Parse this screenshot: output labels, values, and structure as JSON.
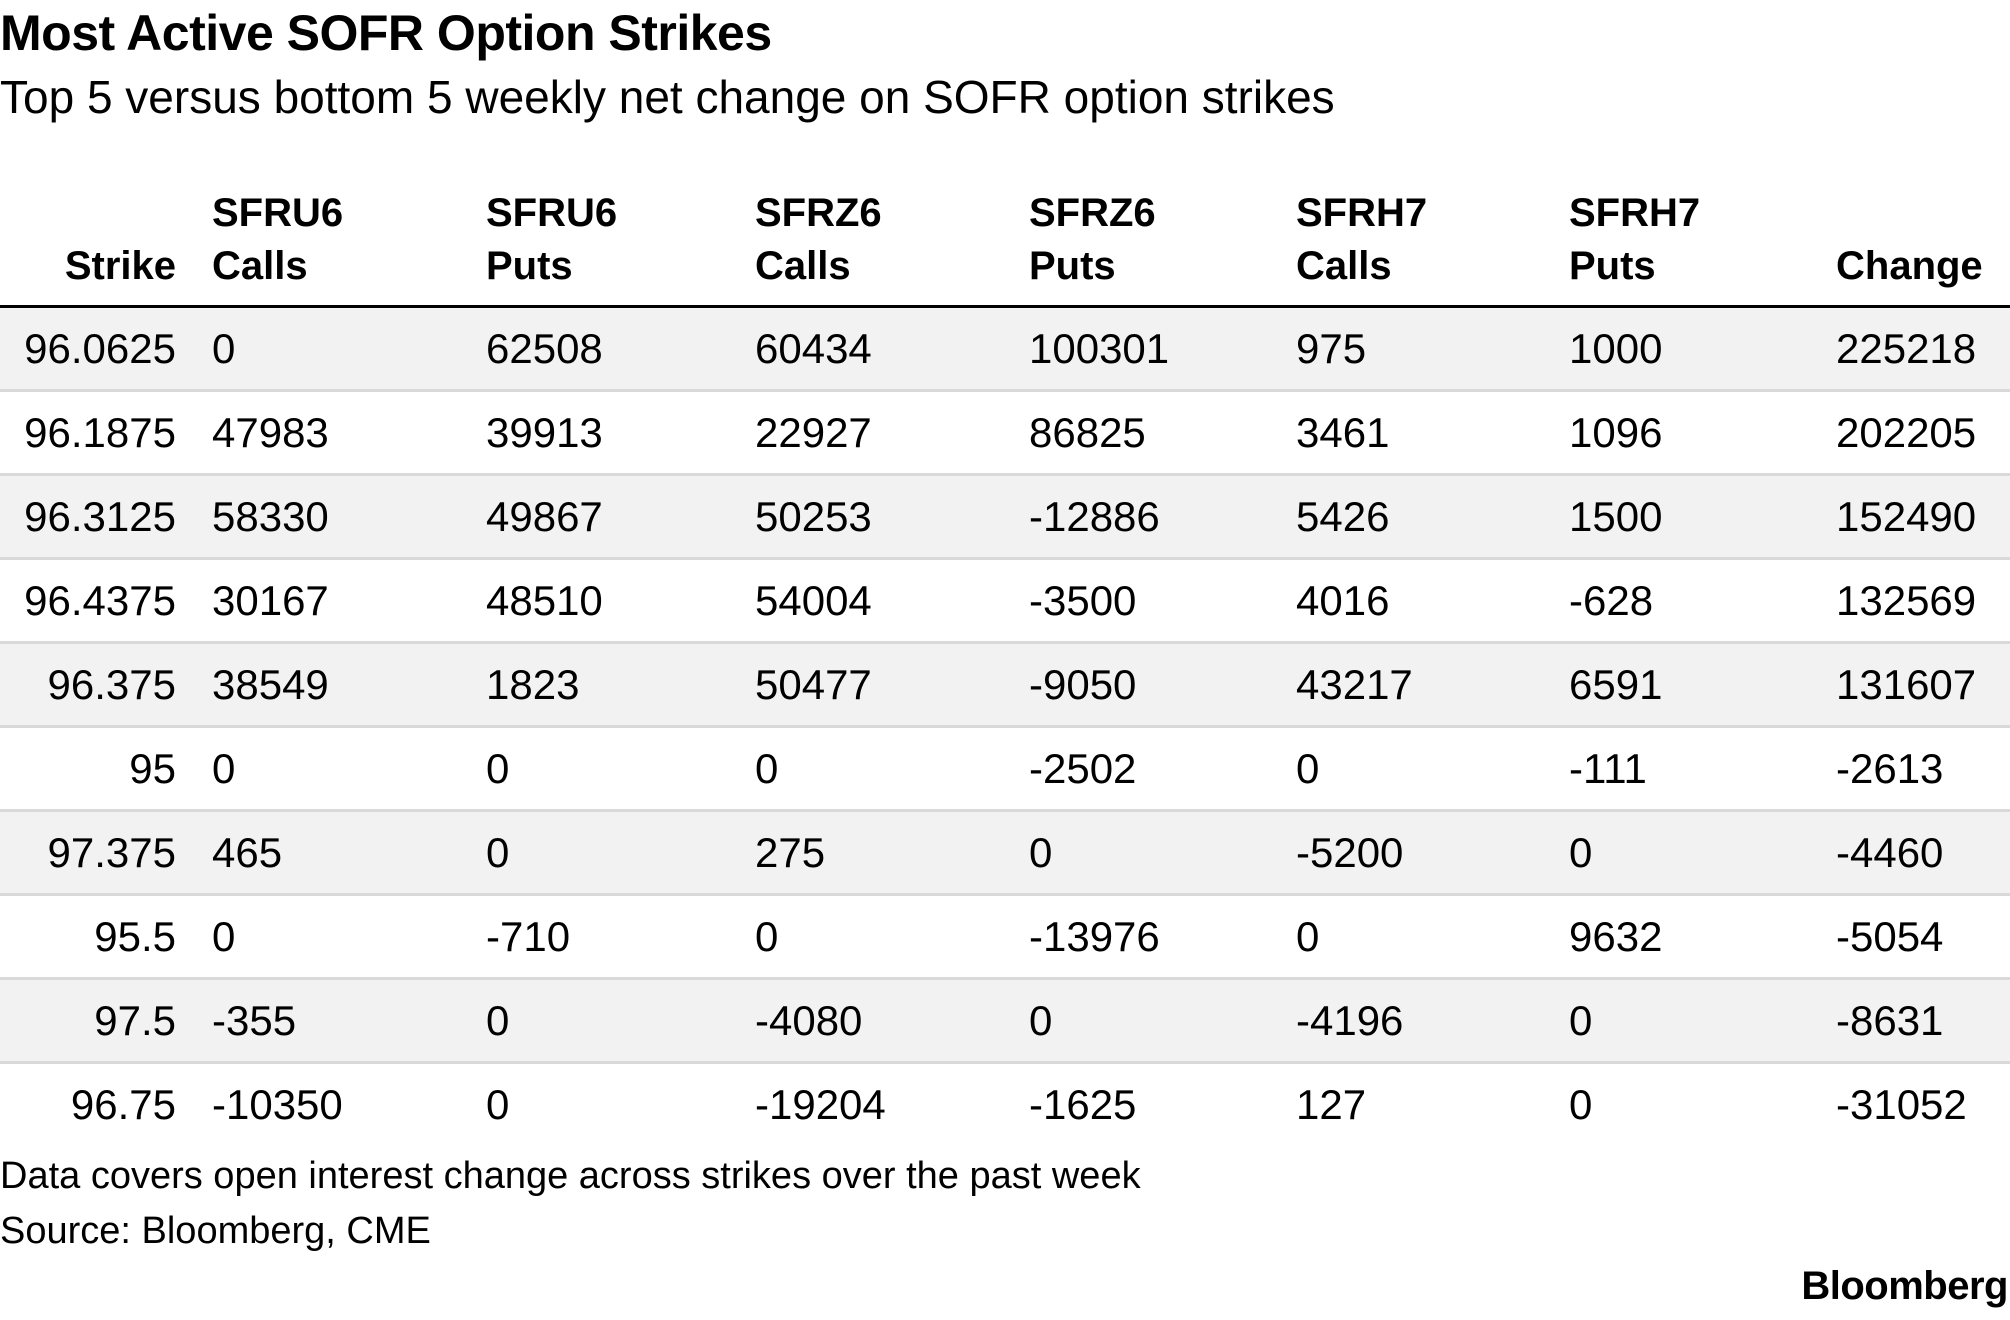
{
  "header": {
    "title": "Most Active SOFR Option Strikes",
    "subtitle": "Top 5 versus bottom 5 weekly net change on SOFR option strikes"
  },
  "table": {
    "columns": [
      {
        "line1": "",
        "line2": "Strike"
      },
      {
        "line1": "SFRU6",
        "line2": "Calls"
      },
      {
        "line1": "SFRU6",
        "line2": "Puts"
      },
      {
        "line1": "SFRZ6",
        "line2": "Calls"
      },
      {
        "line1": "SFRZ6",
        "line2": "Puts"
      },
      {
        "line1": "SFRH7",
        "line2": "Calls"
      },
      {
        "line1": "SFRH7",
        "line2": "Puts"
      },
      {
        "line1": "",
        "line2": "Change"
      }
    ],
    "rows": [
      [
        "96.0625",
        "0",
        "62508",
        "60434",
        "100301",
        "975",
        "1000",
        "225218"
      ],
      [
        "96.1875",
        "47983",
        "39913",
        "22927",
        "86825",
        "3461",
        "1096",
        "202205"
      ],
      [
        "96.3125",
        "58330",
        "49867",
        "50253",
        "-12886",
        "5426",
        "1500",
        "152490"
      ],
      [
        "96.4375",
        "30167",
        "48510",
        "54004",
        "-3500",
        "4016",
        "-628",
        "132569"
      ],
      [
        "96.375",
        "38549",
        "1823",
        "50477",
        "-9050",
        "43217",
        "6591",
        "131607"
      ],
      [
        "95",
        "0",
        "0",
        "0",
        "-2502",
        "0",
        "-111",
        "-2613"
      ],
      [
        "97.375",
        "465",
        "0",
        "275",
        "0",
        "-5200",
        "0",
        "-4460"
      ],
      [
        "95.5",
        "0",
        "-710",
        "0",
        "-13976",
        "0",
        "9632",
        "-5054"
      ],
      [
        "97.5",
        "-355",
        "0",
        "-4080",
        "0",
        "-4196",
        "0",
        "-8631"
      ],
      [
        "96.75",
        "-10350",
        "0",
        "-19204",
        "-1625",
        "127",
        "0",
        "-31052"
      ]
    ]
  },
  "footer": {
    "note": "Data covers open interest change across strikes over the past week",
    "source": "Source: Bloomberg, CME",
    "logo": "Bloomberg"
  }
}
